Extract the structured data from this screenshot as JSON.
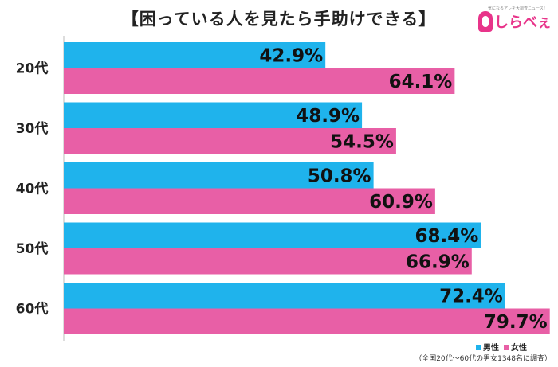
{
  "colors": {
    "male": "#1fb3ec",
    "female": "#e85fa6",
    "brand": "#e8348a"
  },
  "logo": {
    "tagline": "気になるアレを大調査ニュース！",
    "wordmark": "しらべぇ"
  },
  "legend": {
    "male_label": "男性",
    "female_label": "女性"
  },
  "footnote": "（全国20代～60代の男女1348名に調査）",
  "chart_data": {
    "type": "bar",
    "orientation": "horizontal",
    "title": "【困っている人を見たら手助けできる】",
    "categories": [
      "20代",
      "30代",
      "40代",
      "50代",
      "60代"
    ],
    "series": [
      {
        "name": "男性",
        "values": [
          42.9,
          48.9,
          50.8,
          68.4,
          72.4
        ]
      },
      {
        "name": "女性",
        "values": [
          64.1,
          54.5,
          60.9,
          66.9,
          79.7
        ]
      }
    ],
    "value_labels": {
      "male": [
        "42.9%",
        "48.9%",
        "50.8%",
        "68.4%",
        "72.4%"
      ],
      "female": [
        "64.1%",
        "54.5%",
        "60.9%",
        "66.9%",
        "79.7%"
      ]
    },
    "xlim": [
      0,
      80
    ],
    "grid": false,
    "legend_position": "bottom-right"
  }
}
